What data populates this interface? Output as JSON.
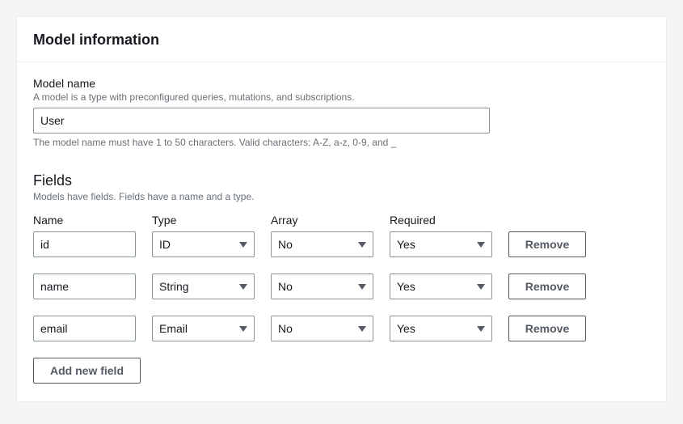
{
  "panel": {
    "title": "Model information"
  },
  "modelName": {
    "label": "Model name",
    "description": "A model is a type with preconfigured queries, mutations, and subscriptions.",
    "value": "User",
    "hint": "The model name must have 1 to 50 characters. Valid characters: A-Z, a-z, 0-9, and _"
  },
  "fieldsSection": {
    "title": "Fields",
    "description": "Models have fields. Fields have a name and a type."
  },
  "columns": {
    "name": "Name",
    "type": "Type",
    "array": "Array",
    "required": "Required"
  },
  "rows": [
    {
      "name": "id",
      "type": "ID",
      "array": "No",
      "required": "Yes"
    },
    {
      "name": "name",
      "type": "String",
      "array": "No",
      "required": "Yes"
    },
    {
      "name": "email",
      "type": "Email",
      "array": "No",
      "required": "Yes"
    }
  ],
  "buttons": {
    "remove": "Remove",
    "addNew": "Add new field"
  },
  "colors": {
    "panel_border": "#eaeded",
    "input_border": "#879596",
    "text_primary": "#16191f",
    "text_secondary": "#687078",
    "button_border": "#545b64",
    "background": "#ffffff",
    "page_background": "#f5f5f5"
  }
}
